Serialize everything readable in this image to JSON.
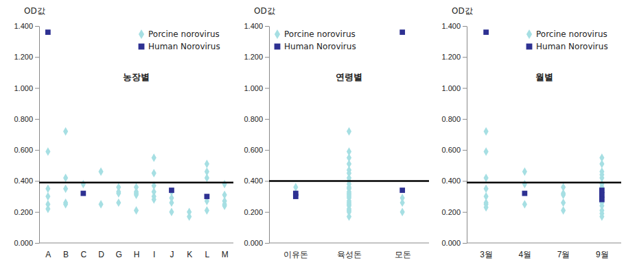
{
  "chart_data": [
    {
      "type": "scatter",
      "title": "농장별",
      "y_label": "OD값",
      "categories": [
        "A",
        "B",
        "C",
        "D",
        "G",
        "H",
        "I",
        "J",
        "K",
        "L",
        "M"
      ],
      "series": [
        {
          "name": "Porcine norovirus",
          "color": "#a6dfe3",
          "marker": "diamond",
          "x": [
            "A",
            "A",
            "A",
            "A",
            "A",
            "B",
            "B",
            "B",
            "B",
            "B",
            "C",
            "D",
            "D",
            "G",
            "G",
            "G",
            "G",
            "H",
            "H",
            "H",
            "H",
            "H",
            "I",
            "I",
            "I",
            "I",
            "I",
            "I",
            "J",
            "J",
            "J",
            "J",
            "K",
            "K",
            "L",
            "L",
            "L",
            "L",
            "L",
            "M",
            "M",
            "M",
            "M",
            "M"
          ],
          "values": [
            0.59,
            0.35,
            0.3,
            0.25,
            0.22,
            0.72,
            0.42,
            0.35,
            0.26,
            0.25,
            0.38,
            0.46,
            0.25,
            0.36,
            0.33,
            0.32,
            0.26,
            0.36,
            0.33,
            0.31,
            0.21,
            0.32,
            0.55,
            0.45,
            0.37,
            0.33,
            0.3,
            0.28,
            0.33,
            0.29,
            0.26,
            0.2,
            0.2,
            0.17,
            0.51,
            0.46,
            0.42,
            0.27,
            0.21,
            0.38,
            0.31,
            0.27,
            0.25,
            0.24
          ]
        },
        {
          "name": "Human Norovirus",
          "color": "#2e3192",
          "marker": "square",
          "x": [
            "A",
            "C",
            "J",
            "L"
          ],
          "values": [
            1.36,
            0.32,
            0.34,
            0.3
          ]
        }
      ],
      "cutoff": 0.39,
      "ylim": [
        0,
        1.4
      ],
      "yticks": [
        {
          "value": 0,
          "label": "0.000"
        },
        {
          "value": 0.2,
          "label": "0.200"
        },
        {
          "value": 0.4,
          "label": "0.400"
        },
        {
          "value": 0.6,
          "label": "0.600"
        },
        {
          "value": 0.8,
          "label": "0.800"
        },
        {
          "value": 1.0,
          "label": "1.000"
        },
        {
          "value": 1.2,
          "label": "1.200"
        },
        {
          "value": 1.4,
          "label": "1.400"
        }
      ],
      "grid": false,
      "legend": "upper right"
    },
    {
      "type": "scatter",
      "title": "연령별",
      "y_label": "OD값",
      "categories": [
        "이유돈",
        "육성돈",
        "모돈"
      ],
      "series": [
        {
          "name": "Porcine norovirus",
          "color": "#a6dfe3",
          "marker": "diamond",
          "x": [
            "이유돈",
            "이유돈",
            "육성돈",
            "육성돈",
            "육성돈",
            "육성돈",
            "육성돈",
            "육성돈",
            "육성돈",
            "육성돈",
            "육성돈",
            "육성돈",
            "육성돈",
            "육성돈",
            "육성돈",
            "육성돈",
            "육성돈",
            "육성돈",
            "육성돈",
            "육성돈",
            "육성돈",
            "육성돈",
            "육성돈",
            "육성돈",
            "육성돈",
            "육성돈",
            "모돈",
            "모돈",
            "모돈"
          ],
          "values": [
            0.36,
            0.32,
            0.72,
            0.59,
            0.55,
            0.51,
            0.47,
            0.45,
            0.42,
            0.4,
            0.38,
            0.36,
            0.35,
            0.33,
            0.32,
            0.31,
            0.3,
            0.29,
            0.27,
            0.26,
            0.25,
            0.24,
            0.22,
            0.21,
            0.2,
            0.17,
            0.29,
            0.26,
            0.2
          ]
        },
        {
          "name": "Human Norovirus",
          "color": "#2e3192",
          "marker": "square",
          "x": [
            "이유돈",
            "이유돈",
            "모돈",
            "모돈"
          ],
          "values": [
            0.32,
            0.3,
            1.36,
            0.34
          ]
        }
      ],
      "cutoff": 0.4,
      "ylim": [
        0,
        1.4
      ],
      "yticks": [
        {
          "value": 0,
          "label": "0.000"
        },
        {
          "value": 0.2,
          "label": "0.200"
        },
        {
          "value": 0.4,
          "label": "0.400"
        },
        {
          "value": 0.6,
          "label": "0.600"
        },
        {
          "value": 0.8,
          "label": "0.800"
        },
        {
          "value": 1.0,
          "label": "1.000"
        },
        {
          "value": 1.2,
          "label": "1.200"
        },
        {
          "value": 1.4,
          "label": "1.400"
        }
      ],
      "grid": false,
      "legend": "upper left"
    },
    {
      "type": "scatter",
      "title": "월별",
      "y_label": "OD값",
      "categories": [
        "3월",
        "4월",
        "7월",
        "9월"
      ],
      "series": [
        {
          "name": "Porcine norovirus",
          "color": "#a6dfe3",
          "marker": "diamond",
          "x": [
            "3월",
            "3월",
            "3월",
            "3월",
            "3월",
            "3월",
            "3월",
            "3월",
            "4월",
            "4월",
            "4월",
            "7월",
            "7월",
            "7월",
            "7월",
            "7월",
            "9월",
            "9월",
            "9월",
            "9월",
            "9월",
            "9월",
            "9월",
            "9월",
            "9월",
            "9월",
            "9월",
            "9월",
            "9월",
            "9월",
            "9월"
          ],
          "values": [
            0.72,
            0.59,
            0.42,
            0.35,
            0.3,
            0.26,
            0.25,
            0.23,
            0.46,
            0.38,
            0.25,
            0.36,
            0.32,
            0.31,
            0.26,
            0.21,
            0.55,
            0.51,
            0.46,
            0.44,
            0.42,
            0.38,
            0.36,
            0.33,
            0.3,
            0.28,
            0.26,
            0.24,
            0.21,
            0.19,
            0.17
          ]
        },
        {
          "name": "Human Norovirus",
          "color": "#2e3192",
          "marker": "square",
          "x": [
            "3월",
            "4월",
            "9월",
            "9월",
            "9월"
          ],
          "values": [
            1.36,
            0.32,
            0.34,
            0.31,
            0.28
          ]
        }
      ],
      "cutoff": 0.39,
      "ylim": [
        0,
        1.4
      ],
      "yticks": [
        {
          "value": 0,
          "label": "0.000"
        },
        {
          "value": 0.2,
          "label": "0.200"
        },
        {
          "value": 0.4,
          "label": "0.400"
        },
        {
          "value": 0.6,
          "label": "0.600"
        },
        {
          "value": 0.8,
          "label": "0.800"
        },
        {
          "value": 1.0,
          "label": "1.000"
        },
        {
          "value": 1.2,
          "label": "1.200"
        },
        {
          "value": 1.4,
          "label": "1.400"
        }
      ],
      "grid": false,
      "legend": "upper right"
    }
  ]
}
